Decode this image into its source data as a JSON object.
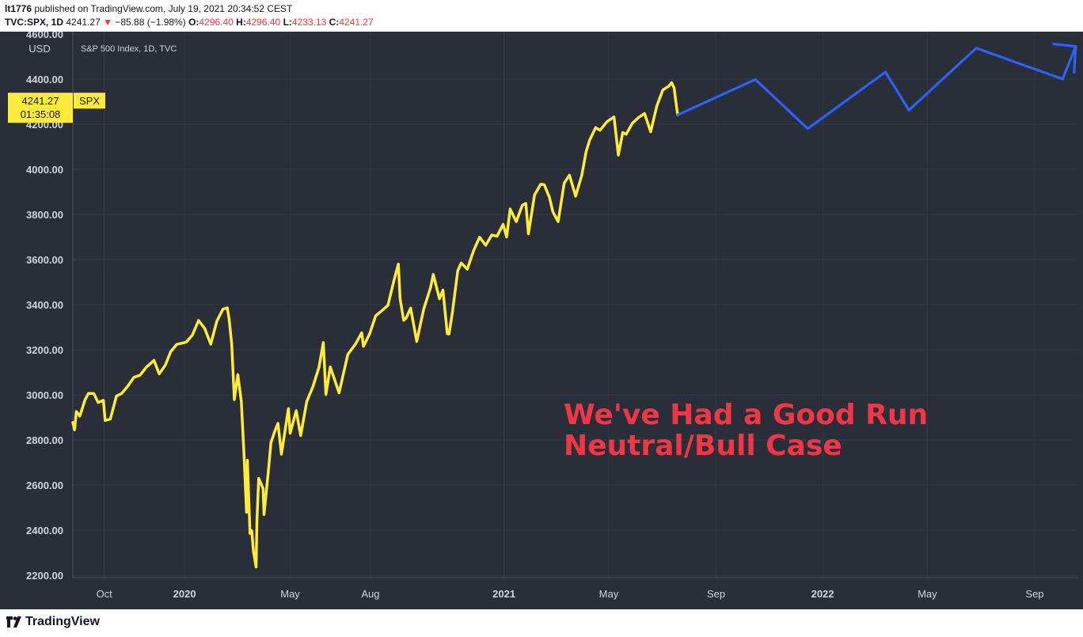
{
  "header": {
    "publisher": "lt1776",
    "published_text": "published on TradingView.com, July 19, 2021 20:34:52 CEST",
    "symbol": "TVC:SPX, 1D",
    "last": "4241.27",
    "change_arrow": "▼",
    "change": "−85.88 (−1.98%)",
    "o_label": "O:",
    "o_value": "4296.40",
    "h_label": "H:",
    "h_value": "4296.40",
    "l_label": "L:",
    "l_value": "4233.13",
    "c_label": "C:",
    "c_value": "4241.27"
  },
  "footer": {
    "brand": "TradingView",
    "logo_icon": "tradingview-logo-icon"
  },
  "chart_data": {
    "type": "line",
    "legend_text": "S&P 500 Index, 1D, TVC",
    "currency": "USD",
    "y_ticks": [
      2200,
      2400,
      2600,
      2800,
      3000,
      3200,
      3400,
      3600,
      3800,
      4000,
      4200,
      4400,
      4600
    ],
    "y_tick_labels": [
      "2200.00",
      "2400.00",
      "2600.00",
      "2800.00",
      "3000.00",
      "3200.00",
      "3400.00",
      "3600.00",
      "3800.00",
      "4000.00",
      "4200.00",
      "4400.00",
      "4600.00"
    ],
    "ylim": [
      2190,
      4610
    ],
    "x_ticks": [
      {
        "label": "Oct",
        "date": "2019-10-01",
        "bold": false
      },
      {
        "label": "2020",
        "date": "2020-01-01",
        "bold": true
      },
      {
        "label": "May",
        "date": "2020-05-01",
        "bold": false
      },
      {
        "label": "Aug",
        "date": "2020-08-01",
        "bold": false
      },
      {
        "label": "2021",
        "date": "2021-01-01",
        "bold": true
      },
      {
        "label": "May",
        "date": "2021-05-01",
        "bold": false
      },
      {
        "label": "Sep",
        "date": "2021-09-01",
        "bold": false
      },
      {
        "label": "2022",
        "date": "2022-01-01",
        "bold": true
      },
      {
        "label": "May",
        "date": "2022-05-01",
        "bold": false
      },
      {
        "label": "Sep",
        "date": "2022-09-01",
        "bold": false
      }
    ],
    "xlim": [
      "2019-08-26",
      "2022-10-20"
    ],
    "price_label": "4241.27",
    "price_symbol": "SPX",
    "countdown": "01:35:08",
    "series": [
      {
        "name": "SPX",
        "color": "#ffeb3b",
        "points": [
          [
            "2019-08-26",
            2878
          ],
          [
            "2019-08-28",
            2845
          ],
          [
            "2019-08-30",
            2926
          ],
          [
            "2019-09-03",
            2906
          ],
          [
            "2019-09-09",
            2978
          ],
          [
            "2019-09-13",
            3007
          ],
          [
            "2019-09-19",
            3006
          ],
          [
            "2019-09-24",
            2966
          ],
          [
            "2019-09-30",
            2976
          ],
          [
            "2019-10-02",
            2887
          ],
          [
            "2019-10-08",
            2893
          ],
          [
            "2019-10-15",
            2995
          ],
          [
            "2019-10-21",
            3006
          ],
          [
            "2019-10-28",
            3039
          ],
          [
            "2019-11-04",
            3078
          ],
          [
            "2019-11-11",
            3087
          ],
          [
            "2019-11-18",
            3122
          ],
          [
            "2019-11-27",
            3153
          ],
          [
            "2019-12-03",
            3093
          ],
          [
            "2019-12-10",
            3132
          ],
          [
            "2019-12-16",
            3191
          ],
          [
            "2019-12-23",
            3224
          ],
          [
            "2019-12-31",
            3231
          ],
          [
            "2020-01-03",
            3234
          ],
          [
            "2020-01-10",
            3265
          ],
          [
            "2020-01-17",
            3330
          ],
          [
            "2020-01-24",
            3295
          ],
          [
            "2020-01-31",
            3225
          ],
          [
            "2020-02-07",
            3327
          ],
          [
            "2020-02-14",
            3380
          ],
          [
            "2020-02-19",
            3386
          ],
          [
            "2020-02-21",
            3337
          ],
          [
            "2020-02-24",
            3225
          ],
          [
            "2020-02-27",
            2979
          ],
          [
            "2020-03-02",
            3090
          ],
          [
            "2020-03-06",
            2972
          ],
          [
            "2020-03-09",
            2746
          ],
          [
            "2020-03-12",
            2480
          ],
          [
            "2020-03-13",
            2711
          ],
          [
            "2020-03-16",
            2386
          ],
          [
            "2020-03-18",
            2398
          ],
          [
            "2020-03-20",
            2305
          ],
          [
            "2020-03-23",
            2237
          ],
          [
            "2020-03-24",
            2447
          ],
          [
            "2020-03-26",
            2630
          ],
          [
            "2020-03-31",
            2585
          ],
          [
            "2020-04-01",
            2470
          ],
          [
            "2020-04-06",
            2663
          ],
          [
            "2020-04-09",
            2790
          ],
          [
            "2020-04-14",
            2846
          ],
          [
            "2020-04-17",
            2874
          ],
          [
            "2020-04-21",
            2737
          ],
          [
            "2020-04-29",
            2939
          ],
          [
            "2020-05-01",
            2830
          ],
          [
            "2020-05-08",
            2930
          ],
          [
            "2020-05-13",
            2820
          ],
          [
            "2020-05-20",
            2971
          ],
          [
            "2020-05-27",
            3036
          ],
          [
            "2020-06-03",
            3122
          ],
          [
            "2020-06-08",
            3232
          ],
          [
            "2020-06-11",
            3002
          ],
          [
            "2020-06-16",
            3124
          ],
          [
            "2020-06-26",
            3009
          ],
          [
            "2020-07-06",
            3179
          ],
          [
            "2020-07-15",
            3226
          ],
          [
            "2020-07-22",
            3276
          ],
          [
            "2020-07-24",
            3215
          ],
          [
            "2020-07-31",
            3271
          ],
          [
            "2020-08-07",
            3351
          ],
          [
            "2020-08-14",
            3373
          ],
          [
            "2020-08-21",
            3397
          ],
          [
            "2020-08-28",
            3508
          ],
          [
            "2020-09-02",
            3580
          ],
          [
            "2020-09-04",
            3426
          ],
          [
            "2020-09-08",
            3331
          ],
          [
            "2020-09-11",
            3341
          ],
          [
            "2020-09-16",
            3385
          ],
          [
            "2020-09-23",
            3237
          ],
          [
            "2020-10-01",
            3380
          ],
          [
            "2020-10-09",
            3477
          ],
          [
            "2020-10-12",
            3534
          ],
          [
            "2020-10-19",
            3426
          ],
          [
            "2020-10-23",
            3465
          ],
          [
            "2020-10-28",
            3271
          ],
          [
            "2020-10-30",
            3270
          ],
          [
            "2020-11-03",
            3369
          ],
          [
            "2020-11-09",
            3550
          ],
          [
            "2020-11-13",
            3585
          ],
          [
            "2020-11-20",
            3557
          ],
          [
            "2020-11-27",
            3638
          ],
          [
            "2020-12-04",
            3699
          ],
          [
            "2020-12-11",
            3663
          ],
          [
            "2020-12-18",
            3709
          ],
          [
            "2020-12-24",
            3703
          ],
          [
            "2020-12-31",
            3756
          ],
          [
            "2021-01-04",
            3700
          ],
          [
            "2021-01-08",
            3824
          ],
          [
            "2021-01-15",
            3768
          ],
          [
            "2021-01-22",
            3841
          ],
          [
            "2021-01-26",
            3849
          ],
          [
            "2021-01-29",
            3714
          ],
          [
            "2021-02-05",
            3886
          ],
          [
            "2021-02-12",
            3934
          ],
          [
            "2021-02-16",
            3932
          ],
          [
            "2021-02-22",
            3876
          ],
          [
            "2021-02-26",
            3811
          ],
          [
            "2021-03-04",
            3768
          ],
          [
            "2021-03-11",
            3939
          ],
          [
            "2021-03-17",
            3974
          ],
          [
            "2021-03-24",
            3881
          ],
          [
            "2021-03-31",
            3972
          ],
          [
            "2021-04-05",
            4077
          ],
          [
            "2021-04-09",
            4128
          ],
          [
            "2021-04-16",
            4185
          ],
          [
            "2021-04-21",
            4173
          ],
          [
            "2021-04-29",
            4211
          ],
          [
            "2021-05-07",
            4232
          ],
          [
            "2021-05-12",
            4063
          ],
          [
            "2021-05-17",
            4163
          ],
          [
            "2021-05-21",
            4155
          ],
          [
            "2021-05-28",
            4204
          ],
          [
            "2021-06-04",
            4229
          ],
          [
            "2021-06-11",
            4247
          ],
          [
            "2021-06-18",
            4166
          ],
          [
            "2021-06-25",
            4280
          ],
          [
            "2021-07-02",
            4352
          ],
          [
            "2021-07-09",
            4369
          ],
          [
            "2021-07-12",
            4384
          ],
          [
            "2021-07-15",
            4360
          ],
          [
            "2021-07-16",
            4327
          ],
          [
            "2021-07-19",
            4241
          ]
        ]
      },
      {
        "name": "projection",
        "color": "#2962ff",
        "points": [
          [
            "2021-07-19",
            4241
          ],
          [
            "2021-10-16",
            4398
          ],
          [
            "2021-12-15",
            4180
          ],
          [
            "2022-03-14",
            4431
          ],
          [
            "2022-04-10",
            4262
          ],
          [
            "2022-06-26",
            4537
          ],
          [
            "2022-10-03",
            4400
          ]
        ],
        "arrowhead": [
          [
            "2022-10-18",
            4545
          ],
          [
            "2022-10-18",
            4430
          ]
        ]
      }
    ],
    "annotation": {
      "lines": [
        "We've Had a Good Run",
        "Neutral/Bull Case"
      ],
      "color": "#f23645"
    },
    "colors": {
      "background": "#2a2e39",
      "grid": "#363a45",
      "axis_text": "#d1d4dc",
      "price_label_bg": "#ffeb3b"
    }
  }
}
